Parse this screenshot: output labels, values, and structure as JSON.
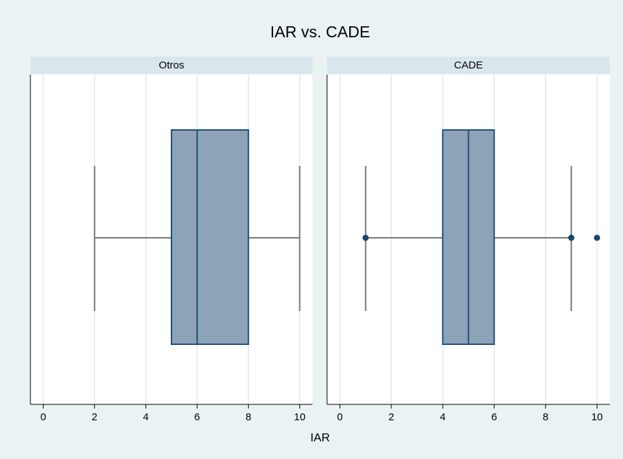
{
  "chart_data": {
    "type": "box",
    "title": "IAR vs. CADE",
    "xlabel": "IAR",
    "xlim": [
      -0.5,
      10.5
    ],
    "xticks": [
      0,
      2,
      4,
      6,
      8,
      10
    ],
    "grid": true,
    "box_color": "#8ca3b8",
    "line_color": "#1f4e79",
    "whisker_color": "#777777",
    "outlier_color": "#1a476f",
    "panels": [
      {
        "name": "Otros",
        "whisker_low": 2,
        "q1": 5,
        "median": 6,
        "q3": 8,
        "whisker_high": 10,
        "outliers": []
      },
      {
        "name": "CADE",
        "whisker_low": 1,
        "q1": 4,
        "median": 5,
        "q3": 6,
        "whisker_high": 9,
        "outliers": [
          1,
          9,
          10
        ]
      }
    ]
  }
}
